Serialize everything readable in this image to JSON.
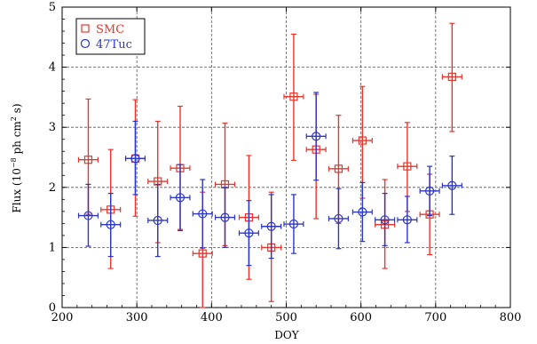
{
  "chart_data": {
    "type": "scatter",
    "xlabel": "DOY",
    "ylabel_prefix": "Flux (10",
    "ylabel_exp1": "−8",
    "ylabel_mid": " ph cm",
    "ylabel_exp2": "2",
    "ylabel_suffix": " s)",
    "xlim": [
      200,
      800
    ],
    "ylim": [
      0,
      5
    ],
    "xticks": [
      200,
      300,
      400,
      500,
      600,
      700,
      800
    ],
    "yticks": [
      0,
      1,
      2,
      3,
      4,
      5
    ],
    "grid": true,
    "legend_position": "top-left",
    "series": [
      {
        "name": "SMC",
        "marker": "square",
        "color": "#e8352c",
        "points": [
          {
            "x": 235,
            "xerr": 13,
            "y": 2.46,
            "ylo": 1.55,
            "yhi": 3.47
          },
          {
            "x": 265,
            "xerr": 13,
            "y": 1.63,
            "ylo": 0.65,
            "yhi": 2.63
          },
          {
            "x": 298,
            "xerr": 13,
            "y": 2.48,
            "ylo": 1.52,
            "yhi": 3.46
          },
          {
            "x": 328,
            "xerr": 13,
            "y": 2.1,
            "ylo": 1.08,
            "yhi": 3.1
          },
          {
            "x": 358,
            "xerr": 13,
            "y": 2.32,
            "ylo": 1.3,
            "yhi": 3.35
          },
          {
            "x": 388,
            "xerr": 13,
            "y": 0.9,
            "ylo": 0.0,
            "yhi": 1.92
          },
          {
            "x": 418,
            "xerr": 13,
            "y": 2.05,
            "ylo": 1.03,
            "yhi": 3.07
          },
          {
            "x": 450,
            "xerr": 13,
            "y": 1.5,
            "ylo": 0.47,
            "yhi": 2.53
          },
          {
            "x": 480,
            "xerr": 13,
            "y": 1.0,
            "ylo": 0.1,
            "yhi": 1.92
          },
          {
            "x": 510,
            "xerr": 13,
            "y": 3.51,
            "ylo": 2.45,
            "yhi": 4.55
          },
          {
            "x": 540,
            "xerr": 13,
            "y": 2.63,
            "ylo": 1.48,
            "yhi": 3.55
          },
          {
            "x": 570,
            "xerr": 13,
            "y": 2.31,
            "ylo": 1.4,
            "yhi": 3.2
          },
          {
            "x": 602,
            "xerr": 13,
            "y": 2.78,
            "ylo": 1.82,
            "yhi": 3.68
          },
          {
            "x": 632,
            "xerr": 13,
            "y": 1.38,
            "ylo": 0.65,
            "yhi": 2.13
          },
          {
            "x": 662,
            "xerr": 13,
            "y": 2.35,
            "ylo": 1.6,
            "yhi": 3.08
          },
          {
            "x": 692,
            "xerr": 13,
            "y": 1.55,
            "ylo": 0.88,
            "yhi": 2.22
          },
          {
            "x": 722,
            "xerr": 13,
            "y": 3.84,
            "ylo": 2.93,
            "yhi": 4.73
          }
        ]
      },
      {
        "name": "47Tuc",
        "marker": "circle",
        "color": "#2b36c4",
        "points": [
          {
            "x": 235,
            "xerr": 13,
            "y": 1.53,
            "ylo": 1.02,
            "yhi": 2.05
          },
          {
            "x": 265,
            "xerr": 13,
            "y": 1.38,
            "ylo": 0.85,
            "yhi": 1.9
          },
          {
            "x": 298,
            "xerr": 13,
            "y": 2.48,
            "ylo": 1.88,
            "yhi": 3.1
          },
          {
            "x": 328,
            "xerr": 13,
            "y": 1.45,
            "ylo": 0.85,
            "yhi": 2.05
          },
          {
            "x": 358,
            "xerr": 13,
            "y": 1.83,
            "ylo": 1.28,
            "yhi": 2.38
          },
          {
            "x": 388,
            "xerr": 13,
            "y": 1.56,
            "ylo": 0.99,
            "yhi": 2.13
          },
          {
            "x": 418,
            "xerr": 13,
            "y": 1.5,
            "ylo": 1.0,
            "yhi": 2.0
          },
          {
            "x": 450,
            "xerr": 13,
            "y": 1.24,
            "ylo": 0.7,
            "yhi": 1.78
          },
          {
            "x": 480,
            "xerr": 13,
            "y": 1.35,
            "ylo": 0.82,
            "yhi": 1.88
          },
          {
            "x": 510,
            "xerr": 13,
            "y": 1.39,
            "ylo": 0.9,
            "yhi": 1.88
          },
          {
            "x": 540,
            "xerr": 13,
            "y": 2.85,
            "ylo": 2.12,
            "yhi": 3.58
          },
          {
            "x": 570,
            "xerr": 13,
            "y": 1.48,
            "ylo": 0.98,
            "yhi": 1.98
          },
          {
            "x": 602,
            "xerr": 13,
            "y": 1.59,
            "ylo": 1.1,
            "yhi": 2.08
          },
          {
            "x": 632,
            "xerr": 13,
            "y": 1.46,
            "ylo": 1.03,
            "yhi": 1.9
          },
          {
            "x": 662,
            "xerr": 13,
            "y": 1.46,
            "ylo": 1.08,
            "yhi": 1.85
          },
          {
            "x": 692,
            "xerr": 13,
            "y": 1.94,
            "ylo": 1.53,
            "yhi": 2.35
          },
          {
            "x": 722,
            "xerr": 13,
            "y": 2.03,
            "ylo": 1.55,
            "yhi": 2.52
          }
        ]
      }
    ]
  }
}
